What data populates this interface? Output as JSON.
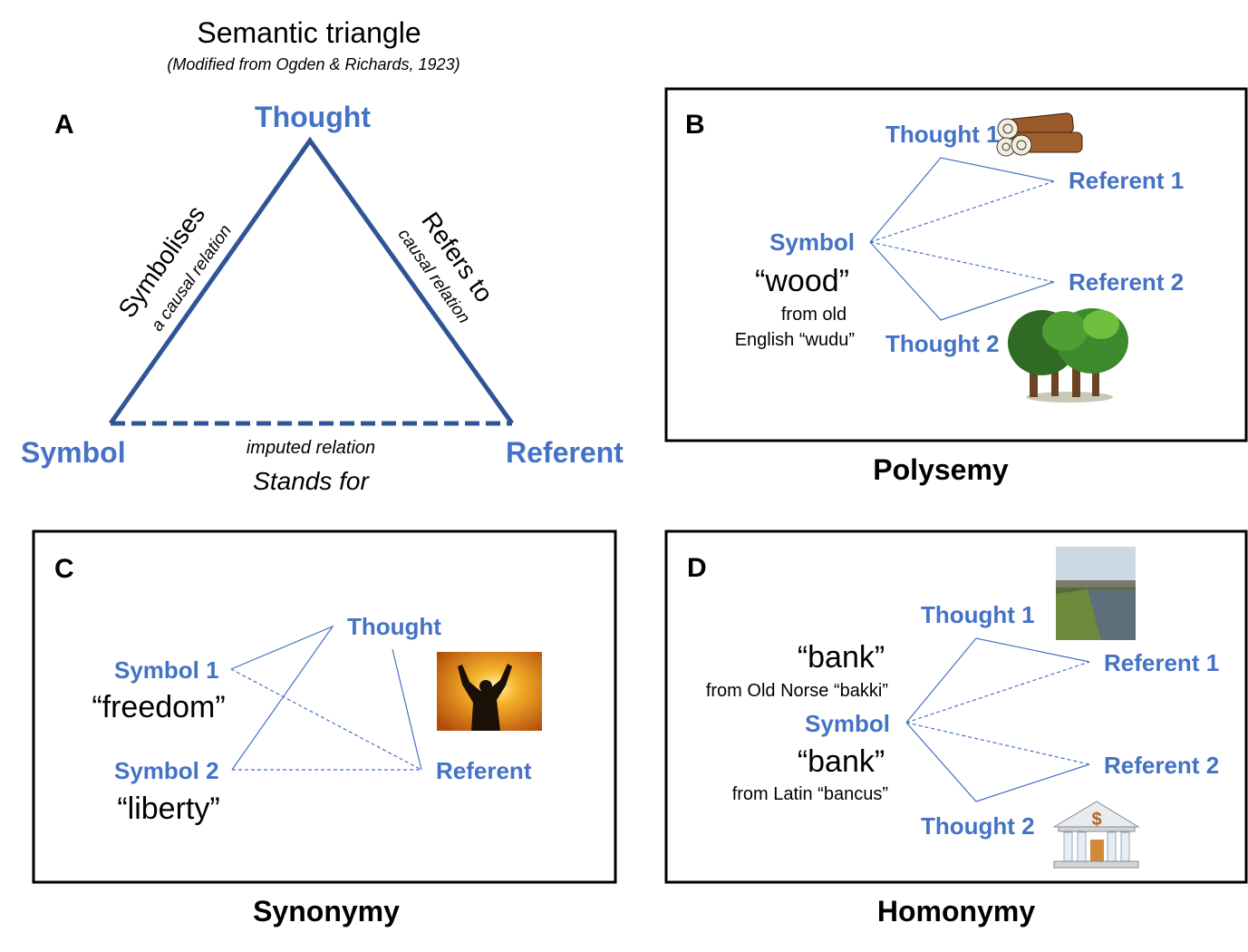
{
  "colors": {
    "label_blue": "#4472C4",
    "triangle_blue": "#2F5597"
  },
  "panel_a": {
    "title": "Semantic triangle",
    "subtitle": "(Modified from Ogden & Richards, 1923)",
    "letter": "A",
    "thought": "Thought",
    "symbol": "Symbol",
    "referent": "Referent",
    "left_edge": "Symbolises",
    "left_edge_sub": "a causal relation",
    "right_edge": "Refers to",
    "right_edge_sub": "causal relation",
    "bottom_sub": "imputed relation",
    "bottom_edge": "Stands for"
  },
  "panel_b": {
    "letter": "B",
    "thought1": "Thought 1",
    "thought2": "Thought 2",
    "referent1": "Referent 1",
    "referent2": "Referent 2",
    "symbol": "Symbol",
    "word": "“wood”",
    "origin_line1": "from old",
    "origin_line2": "English “wudu”",
    "caption": "Polysemy",
    "images": [
      "logs-image",
      "trees-image"
    ]
  },
  "panel_c": {
    "letter": "C",
    "thought": "Thought",
    "symbol1": "Symbol 1",
    "word1": "“freedom”",
    "symbol2": "Symbol 2",
    "word2": "“liberty”",
    "referent": "Referent",
    "caption": "Synonymy",
    "images": [
      "freedom-silhouette-image"
    ]
  },
  "panel_d": {
    "letter": "D",
    "thought1": "Thought 1",
    "thought2": "Thought 2",
    "referent1": "Referent 1",
    "referent2": "Referent 2",
    "word1": "“bank”",
    "origin1": "from Old Norse “bakki”",
    "symbol": "Symbol",
    "word2": "“bank”",
    "origin2": "from Latin “bancus”",
    "caption": "Homonymy",
    "images": [
      "river-bank-image",
      "bank-building-icon"
    ]
  }
}
